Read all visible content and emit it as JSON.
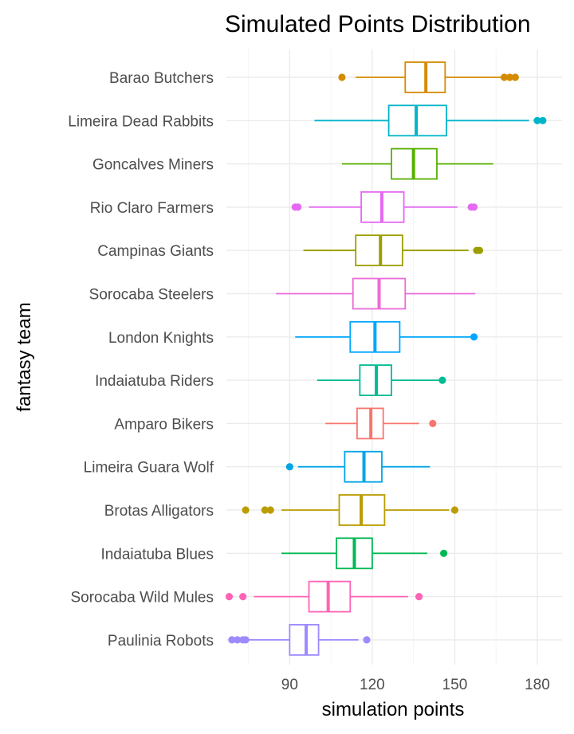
{
  "chart_data": {
    "type": "boxplot",
    "orientation": "horizontal",
    "title": "Simulated Points Distribution",
    "xlabel": "simulation points",
    "ylabel": "fantasy team",
    "xlim": [
      67,
      189
    ],
    "x_ticks": [
      90,
      120,
      150,
      180
    ],
    "x_minor_ticks": [
      75,
      105,
      135,
      165
    ],
    "grid": true,
    "legend": "none",
    "series": [
      {
        "category": "Barao Butchers",
        "color": "#D58B00",
        "whisker_low": 114,
        "q1": 132,
        "median": 139.5,
        "q3": 146.5,
        "whisker_high": 167,
        "outliers": [
          109,
          168,
          170,
          172
        ]
      },
      {
        "category": "Limeira Dead Rabbits",
        "color": "#00B4C9",
        "whisker_low": 99,
        "q1": 126,
        "median": 136,
        "q3": 147,
        "whisker_high": 177,
        "outliers": [
          180,
          182
        ]
      },
      {
        "category": "Goncalves Miners",
        "color": "#58B000",
        "whisker_low": 109,
        "q1": 127,
        "median": 135,
        "q3": 143.5,
        "whisker_high": 164,
        "outliers": []
      },
      {
        "category": "Rio Claro Farmers",
        "color": "#E56AF3",
        "whisker_low": 97,
        "q1": 116,
        "median": 123.5,
        "q3": 131.5,
        "whisker_high": 151,
        "outliers": [
          92,
          93,
          156,
          157
        ]
      },
      {
        "category": "Campinas Giants",
        "color": "#9C9E00",
        "whisker_low": 95,
        "q1": 114,
        "median": 123,
        "q3": 131,
        "whisker_high": 155,
        "outliers": [
          158,
          159
        ]
      },
      {
        "category": "Sorocaba Steelers",
        "color": "#EC6BD8",
        "whisker_low": 85,
        "q1": 113,
        "median": 122.5,
        "q3": 132,
        "whisker_high": 157.5,
        "outliers": []
      },
      {
        "category": "London Knights",
        "color": "#00A6FF",
        "whisker_low": 92,
        "q1": 112,
        "median": 121,
        "q3": 130,
        "whisker_high": 156,
        "outliers": [
          157
        ]
      },
      {
        "category": "Indaiatuba Riders",
        "color": "#00BC92",
        "whisker_low": 100,
        "q1": 115.5,
        "median": 121.5,
        "q3": 127,
        "whisker_high": 145,
        "outliers": [
          145.5
        ]
      },
      {
        "category": "Amparo Bikers",
        "color": "#F8766D",
        "whisker_low": 103,
        "q1": 114.5,
        "median": 119.5,
        "q3": 124,
        "whisker_high": 137,
        "outliers": [
          142
        ]
      },
      {
        "category": "Limeira Guara Wolf",
        "color": "#00A5E6",
        "whisker_low": 93,
        "q1": 110,
        "median": 117,
        "q3": 123.5,
        "whisker_high": 141,
        "outliers": [
          90
        ]
      },
      {
        "category": "Brotas Alligators",
        "color": "#BB9D00",
        "whisker_low": 87,
        "q1": 108,
        "median": 116,
        "q3": 124.5,
        "whisker_high": 148,
        "outliers": [
          74,
          81,
          83,
          150
        ]
      },
      {
        "category": "Indaiatuba Blues",
        "color": "#00B954",
        "whisker_low": 87,
        "q1": 107,
        "median": 113.5,
        "q3": 120,
        "whisker_high": 140,
        "outliers": [
          146
        ]
      },
      {
        "category": "Sorocaba Wild Mules",
        "color": "#FF63B6",
        "whisker_low": 77,
        "q1": 97,
        "median": 104,
        "q3": 112,
        "whisker_high": 133,
        "outliers": [
          68,
          73,
          137
        ]
      },
      {
        "category": "Paulinia Robots",
        "color": "#9D8AFF",
        "whisker_low": 75,
        "q1": 90,
        "median": 96,
        "q3": 100.5,
        "whisker_high": 115,
        "outliers": [
          69,
          71,
          73,
          74,
          118
        ]
      }
    ]
  }
}
